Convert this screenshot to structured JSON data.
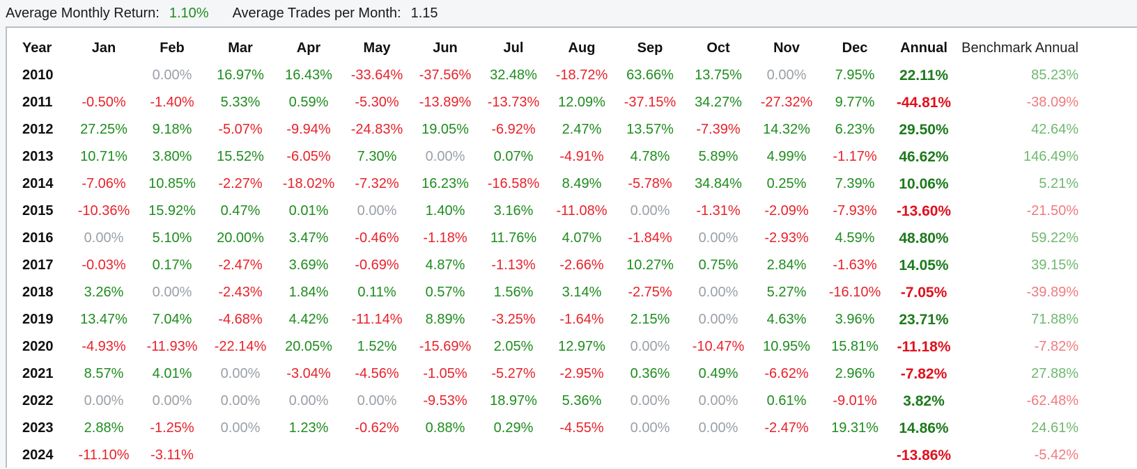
{
  "summary": {
    "avg_monthly_return_label": "Average Monthly Return:",
    "avg_monthly_return_value": "1.10%",
    "avg_trades_label": "Average Trades per Month:",
    "avg_trades_value": "1.15"
  },
  "colors": {
    "positive": "#1e8c1e",
    "negative": "#e8222a",
    "zero": "#9aa0a6"
  },
  "table": {
    "headers": [
      "Year",
      "Jan",
      "Feb",
      "Mar",
      "Apr",
      "May",
      "Jun",
      "Jul",
      "Aug",
      "Sep",
      "Oct",
      "Nov",
      "Dec",
      "Annual",
      "Benchmark Annual"
    ],
    "rows": [
      {
        "year": "2010",
        "cells": [
          "",
          "0.00%",
          "16.97%",
          "16.43%",
          "-33.64%",
          "-37.56%",
          "32.48%",
          "-18.72%",
          "63.66%",
          "13.75%",
          "0.00%",
          "7.95%",
          "22.11%",
          "85.23%"
        ]
      },
      {
        "year": "2011",
        "cells": [
          "-0.50%",
          "-1.40%",
          "5.33%",
          "0.59%",
          "-5.30%",
          "-13.89%",
          "-13.73%",
          "12.09%",
          "-37.15%",
          "34.27%",
          "-27.32%",
          "9.77%",
          "-44.81%",
          "-38.09%"
        ]
      },
      {
        "year": "2012",
        "cells": [
          "27.25%",
          "9.18%",
          "-5.07%",
          "-9.94%",
          "-24.83%",
          "19.05%",
          "-6.92%",
          "2.47%",
          "13.57%",
          "-7.39%",
          "14.32%",
          "6.23%",
          "29.50%",
          "42.64%"
        ]
      },
      {
        "year": "2013",
        "cells": [
          "10.71%",
          "3.80%",
          "15.52%",
          "-6.05%",
          "7.30%",
          "0.00%",
          "0.07%",
          "-4.91%",
          "4.78%",
          "5.89%",
          "4.99%",
          "-1.17%",
          "46.62%",
          "146.49%"
        ]
      },
      {
        "year": "2014",
        "cells": [
          "-7.06%",
          "10.85%",
          "-2.27%",
          "-18.02%",
          "-7.32%",
          "16.23%",
          "-16.58%",
          "8.49%",
          "-5.78%",
          "34.84%",
          "0.25%",
          "7.39%",
          "10.06%",
          "5.21%"
        ]
      },
      {
        "year": "2015",
        "cells": [
          "-10.36%",
          "15.92%",
          "0.47%",
          "0.01%",
          "0.00%",
          "1.40%",
          "3.16%",
          "-11.08%",
          "0.00%",
          "-1.31%",
          "-2.09%",
          "-7.93%",
          "-13.60%",
          "-21.50%"
        ]
      },
      {
        "year": "2016",
        "cells": [
          "0.00%",
          "5.10%",
          "20.00%",
          "3.47%",
          "-0.46%",
          "-1.18%",
          "11.76%",
          "4.07%",
          "-1.84%",
          "0.00%",
          "-2.93%",
          "4.59%",
          "48.80%",
          "59.22%"
        ]
      },
      {
        "year": "2017",
        "cells": [
          "-0.03%",
          "0.17%",
          "-2.47%",
          "3.69%",
          "-0.69%",
          "4.87%",
          "-1.13%",
          "-2.66%",
          "10.27%",
          "0.75%",
          "2.84%",
          "-1.63%",
          "14.05%",
          "39.15%"
        ]
      },
      {
        "year": "2018",
        "cells": [
          "3.26%",
          "0.00%",
          "-2.43%",
          "1.84%",
          "0.11%",
          "0.57%",
          "1.56%",
          "3.14%",
          "-2.75%",
          "0.00%",
          "5.27%",
          "-16.10%",
          "-7.05%",
          "-39.89%"
        ]
      },
      {
        "year": "2019",
        "cells": [
          "13.47%",
          "7.04%",
          "-4.68%",
          "4.42%",
          "-11.14%",
          "8.89%",
          "-3.25%",
          "-1.64%",
          "2.15%",
          "0.00%",
          "4.63%",
          "3.96%",
          "23.71%",
          "71.88%"
        ]
      },
      {
        "year": "2020",
        "cells": [
          "-4.93%",
          "-11.93%",
          "-22.14%",
          "20.05%",
          "1.52%",
          "-15.69%",
          "2.05%",
          "12.97%",
          "0.00%",
          "-10.47%",
          "10.95%",
          "15.81%",
          "-11.18%",
          "-7.82%"
        ]
      },
      {
        "year": "2021",
        "cells": [
          "8.57%",
          "4.01%",
          "0.00%",
          "-3.04%",
          "-4.56%",
          "-1.05%",
          "-5.27%",
          "-2.95%",
          "0.36%",
          "0.49%",
          "-6.62%",
          "2.96%",
          "-7.82%",
          "27.88%"
        ]
      },
      {
        "year": "2022",
        "cells": [
          "0.00%",
          "0.00%",
          "0.00%",
          "0.00%",
          "0.00%",
          "-9.53%",
          "18.97%",
          "5.36%",
          "0.00%",
          "0.00%",
          "0.61%",
          "-9.01%",
          "3.82%",
          "-62.48%"
        ]
      },
      {
        "year": "2023",
        "cells": [
          "2.88%",
          "-1.25%",
          "0.00%",
          "1.23%",
          "-0.62%",
          "0.88%",
          "0.29%",
          "-4.55%",
          "0.00%",
          "0.00%",
          "-2.47%",
          "19.31%",
          "14.86%",
          "24.61%"
        ]
      },
      {
        "year": "2024",
        "cells": [
          "-11.10%",
          "-3.11%",
          "",
          "",
          "",
          "",
          "",
          "",
          "",
          "",
          "",
          "",
          "-13.86%",
          "-5.42%"
        ]
      }
    ]
  }
}
